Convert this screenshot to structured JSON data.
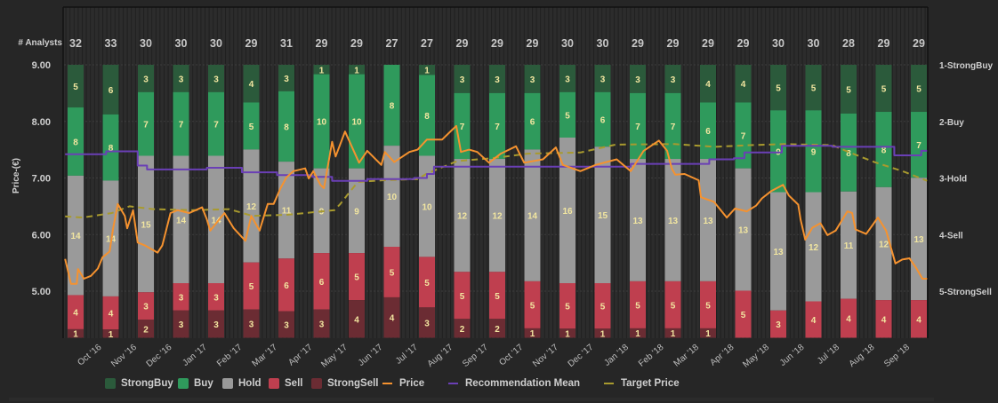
{
  "chart_data": {
    "type": "bar",
    "stacked": true,
    "analysts_label": "# Analysts",
    "ylabel": "Price-(€)",
    "ylim": [
      4.18,
      9.0
    ],
    "yticks": [
      "9.00",
      "8.00",
      "7.00",
      "6.00",
      "5.00"
    ],
    "right_axis_ticks": [
      "1-StrongBuy",
      "2-Buy",
      "3-Hold",
      "4-Sell",
      "5-StrongSell"
    ],
    "x_tick_labels": [
      "Oct '16",
      "Nov '16",
      "Dec '16",
      "Jan '17",
      "Feb '17",
      "Mar '17",
      "Apr '17",
      "May '17",
      "Jun '17",
      "Jul '17",
      "Aug '17",
      "Sep '17",
      "Oct '17",
      "Nov '17",
      "Dec '17",
      "Jan '18",
      "Feb '18",
      "Mar '18",
      "Apr '18",
      "May '18",
      "Jun '18",
      "Jul '18",
      "Aug '18",
      "Sep '18"
    ],
    "grid": true,
    "legend_position": "bottom",
    "analyst_counts": [
      32,
      33,
      30,
      30,
      30,
      29,
      31,
      29,
      29,
      27,
      27,
      29,
      29,
      29,
      30,
      30,
      29,
      29,
      29,
      29,
      30,
      30,
      28,
      29,
      29
    ],
    "series": [
      {
        "name": "StrongBuy",
        "color": "#2b5a3b",
        "values": [
          5,
          6,
          3,
          3,
          3,
          4,
          3,
          1,
          1,
          0,
          1,
          3,
          3,
          3,
          3,
          3,
          3,
          3,
          4,
          4,
          5,
          5,
          5,
          5,
          5
        ]
      },
      {
        "name": "Buy",
        "color": "#2f9a5c",
        "values": [
          8,
          8,
          7,
          7,
          7,
          5,
          8,
          10,
          10,
          8,
          8,
          7,
          7,
          6,
          5,
          6,
          7,
          7,
          6,
          7,
          9,
          9,
          8,
          8,
          7
        ]
      },
      {
        "name": "Hold",
        "color": "#9a9a9a",
        "values": [
          14,
          14,
          15,
          14,
          14,
          12,
          11,
          9,
          9,
          10,
          10,
          12,
          12,
          14,
          16,
          15,
          13,
          13,
          13,
          13,
          13,
          12,
          11,
          12,
          13
        ]
      },
      {
        "name": "Sell",
        "color": "#bf3f4f",
        "values": [
          4,
          4,
          3,
          3,
          3,
          5,
          6,
          6,
          5,
          5,
          5,
          5,
          5,
          5,
          5,
          5,
          5,
          5,
          5,
          5,
          3,
          4,
          4,
          4,
          4
        ]
      },
      {
        "name": "StrongSell",
        "color": "#6b2c33",
        "values": [
          1,
          1,
          2,
          3,
          3,
          3,
          3,
          3,
          4,
          4,
          3,
          2,
          2,
          1,
          1,
          1,
          1,
          1,
          1,
          0,
          0,
          0,
          0,
          0,
          0
        ]
      }
    ],
    "lines": [
      {
        "name": "Price",
        "color": "#f5922f",
        "style": "solid",
        "points": [
          [
            "2016-08-30",
            5.57
          ],
          [
            "2016-09-05",
            5.13
          ],
          [
            "2016-09-10",
            5.13
          ],
          [
            "2016-09-11",
            5.39
          ],
          [
            "2016-09-16",
            5.22
          ],
          [
            "2016-09-22",
            5.27
          ],
          [
            "2016-09-28",
            5.4
          ],
          [
            "2016-10-02",
            5.6
          ],
          [
            "2016-10-08",
            5.7
          ],
          [
            "2016-10-11",
            6.11
          ],
          [
            "2016-10-15",
            6.54
          ],
          [
            "2016-10-21",
            6.33
          ],
          [
            "2016-10-23",
            6.11
          ],
          [
            "2016-10-28",
            6.43
          ],
          [
            "2016-11-02",
            5.86
          ],
          [
            "2016-11-08",
            5.81
          ],
          [
            "2016-11-19",
            5.68
          ],
          [
            "2016-11-23",
            5.81
          ],
          [
            "2016-11-30",
            6.38
          ],
          [
            "2016-12-06",
            6.43
          ],
          [
            "2016-12-16",
            6.38
          ],
          [
            "2016-12-27",
            6.48
          ],
          [
            "2017-01-01",
            6.27
          ],
          [
            "2017-01-04",
            6.07
          ],
          [
            "2017-01-16",
            6.38
          ],
          [
            "2017-01-24",
            6.11
          ],
          [
            "2017-02-04",
            5.89
          ],
          [
            "2017-02-09",
            6.33
          ],
          [
            "2017-02-16",
            6.07
          ],
          [
            "2017-02-23",
            6.54
          ],
          [
            "2017-02-28",
            6.54
          ],
          [
            "2017-03-04",
            6.82
          ],
          [
            "2017-03-09",
            7.01
          ],
          [
            "2017-03-15",
            7.12
          ],
          [
            "2017-03-25",
            7.17
          ],
          [
            "2017-03-28",
            6.99
          ],
          [
            "2017-04-02",
            7.12
          ],
          [
            "2017-04-08",
            6.88
          ],
          [
            "2017-04-11",
            6.82
          ],
          [
            "2017-04-18",
            7.64
          ],
          [
            "2017-04-21",
            7.38
          ],
          [
            "2017-04-29",
            7.82
          ],
          [
            "2017-05-11",
            7.27
          ],
          [
            "2017-05-18",
            7.48
          ],
          [
            "2017-05-30",
            7.23
          ],
          [
            "2017-06-03",
            7.46
          ],
          [
            "2017-06-11",
            7.28
          ],
          [
            "2017-06-24",
            7.46
          ],
          [
            "2017-07-01",
            7.5
          ],
          [
            "2017-07-09",
            7.68
          ],
          [
            "2017-07-22",
            7.68
          ],
          [
            "2017-07-30",
            7.84
          ],
          [
            "2017-08-04",
            7.92
          ],
          [
            "2017-08-08",
            7.46
          ],
          [
            "2017-08-15",
            7.5
          ],
          [
            "2017-08-22",
            7.46
          ],
          [
            "2017-09-02",
            7.27
          ],
          [
            "2017-09-12",
            7.43
          ],
          [
            "2017-09-25",
            7.56
          ],
          [
            "2017-10-02",
            7.27
          ],
          [
            "2017-10-18",
            7.33
          ],
          [
            "2017-10-29",
            7.54
          ],
          [
            "2017-11-05",
            7.23
          ],
          [
            "2017-11-20",
            7.12
          ],
          [
            "2017-12-03",
            7.23
          ],
          [
            "2017-12-21",
            7.33
          ],
          [
            "2018-01-03",
            7.12
          ],
          [
            "2018-01-14",
            7.48
          ],
          [
            "2018-01-27",
            7.66
          ],
          [
            "2018-02-04",
            7.48
          ],
          [
            "2018-02-08",
            7.17
          ],
          [
            "2018-02-11",
            7.06
          ],
          [
            "2018-02-19",
            7.07
          ],
          [
            "2018-03-01",
            6.96
          ],
          [
            "2018-03-03",
            6.66
          ],
          [
            "2018-03-14",
            6.58
          ],
          [
            "2018-03-25",
            6.3
          ],
          [
            "2018-04-02",
            6.46
          ],
          [
            "2018-04-12",
            6.41
          ],
          [
            "2018-04-20",
            6.51
          ],
          [
            "2018-04-25",
            6.64
          ],
          [
            "2018-05-03",
            6.77
          ],
          [
            "2018-05-13",
            6.88
          ],
          [
            "2018-05-18",
            6.69
          ],
          [
            "2018-05-26",
            6.53
          ],
          [
            "2018-05-28",
            6.27
          ],
          [
            "2018-06-02",
            5.91
          ],
          [
            "2018-06-08",
            6.12
          ],
          [
            "2018-06-15",
            6.2
          ],
          [
            "2018-06-21",
            5.99
          ],
          [
            "2018-06-28",
            6.07
          ],
          [
            "2018-07-08",
            6.41
          ],
          [
            "2018-07-12",
            6.38
          ],
          [
            "2018-07-15",
            6.09
          ],
          [
            "2018-07-24",
            6.01
          ],
          [
            "2018-08-04",
            6.3
          ],
          [
            "2018-08-11",
            6.07
          ],
          [
            "2018-08-19",
            5.49
          ],
          [
            "2018-08-25",
            5.56
          ],
          [
            "2018-09-01",
            5.58
          ],
          [
            "2018-09-07",
            5.4
          ],
          [
            "2018-09-12",
            5.22
          ],
          [
            "2018-09-16",
            5.22
          ]
        ]
      },
      {
        "name": "Recommendation Mean",
        "color": "#6a3fb5",
        "style": "step",
        "axis": "right",
        "points": [
          [
            "2016-08-30",
            2.58
          ],
          [
            "2016-10-05",
            2.53
          ],
          [
            "2016-11-02",
            2.78
          ],
          [
            "2016-11-10",
            2.85
          ],
          [
            "2017-01-01",
            2.82
          ],
          [
            "2017-02-01",
            2.9
          ],
          [
            "2017-03-01",
            2.95
          ],
          [
            "2017-04-01",
            2.98
          ],
          [
            "2017-04-18",
            3.05
          ],
          [
            "2017-05-18",
            3.02
          ],
          [
            "2017-06-28",
            3.0
          ],
          [
            "2017-07-09",
            2.93
          ],
          [
            "2017-07-15",
            2.8
          ],
          [
            "2018-01-03",
            2.75
          ],
          [
            "2018-03-10",
            2.67
          ],
          [
            "2018-04-01",
            2.65
          ],
          [
            "2018-04-10",
            2.55
          ],
          [
            "2018-05-12",
            2.43
          ],
          [
            "2018-06-25",
            2.45
          ],
          [
            "2018-08-18",
            2.6
          ],
          [
            "2018-09-11",
            2.52
          ],
          [
            "2018-09-16",
            2.52
          ]
        ]
      },
      {
        "name": "Target Price",
        "color": "#a89a2e",
        "style": "dashed",
        "points": [
          [
            "2016-08-30",
            6.32
          ],
          [
            "2016-09-15",
            6.3
          ],
          [
            "2016-10-10",
            6.38
          ],
          [
            "2016-10-25",
            6.5
          ],
          [
            "2016-11-15",
            6.45
          ],
          [
            "2016-12-20",
            6.43
          ],
          [
            "2017-01-20",
            6.45
          ],
          [
            "2017-02-10",
            6.33
          ],
          [
            "2017-03-10",
            6.35
          ],
          [
            "2017-04-05",
            6.4
          ],
          [
            "2017-04-20",
            6.43
          ],
          [
            "2017-04-25",
            6.54
          ],
          [
            "2017-05-01",
            6.7
          ],
          [
            "2017-05-10",
            6.93
          ],
          [
            "2017-06-01",
            6.96
          ],
          [
            "2017-07-01",
            6.98
          ],
          [
            "2017-07-09",
            7.08
          ],
          [
            "2017-08-05",
            7.3
          ],
          [
            "2017-09-05",
            7.35
          ],
          [
            "2017-10-05",
            7.43
          ],
          [
            "2017-11-20",
            7.45
          ],
          [
            "2017-12-20",
            7.59
          ],
          [
            "2018-02-10",
            7.6
          ],
          [
            "2018-03-15",
            7.55
          ],
          [
            "2018-04-15",
            7.58
          ],
          [
            "2018-05-15",
            7.6
          ],
          [
            "2018-06-25",
            7.58
          ],
          [
            "2018-07-10",
            7.45
          ],
          [
            "2018-08-01",
            7.28
          ],
          [
            "2018-08-25",
            7.12
          ],
          [
            "2018-09-10",
            7.0
          ],
          [
            "2018-09-16",
            6.95
          ]
        ]
      }
    ]
  },
  "legend": {
    "items": [
      {
        "label": "StrongBuy",
        "kind": "box",
        "color": "#2b5a3b"
      },
      {
        "label": "Buy",
        "kind": "box",
        "color": "#2f9a5c"
      },
      {
        "label": "Hold",
        "kind": "box",
        "color": "#9a9a9a"
      },
      {
        "label": "Sell",
        "kind": "box",
        "color": "#bf3f4f"
      },
      {
        "label": "StrongSell",
        "kind": "box",
        "color": "#6b2c33"
      },
      {
        "label": "Price",
        "kind": "line",
        "color": "#f5922f"
      },
      {
        "label": "Recommendation Mean",
        "kind": "line",
        "color": "#6a3fb5"
      },
      {
        "label": "Target Price",
        "kind": "line",
        "color": "#a89a2e"
      }
    ]
  }
}
